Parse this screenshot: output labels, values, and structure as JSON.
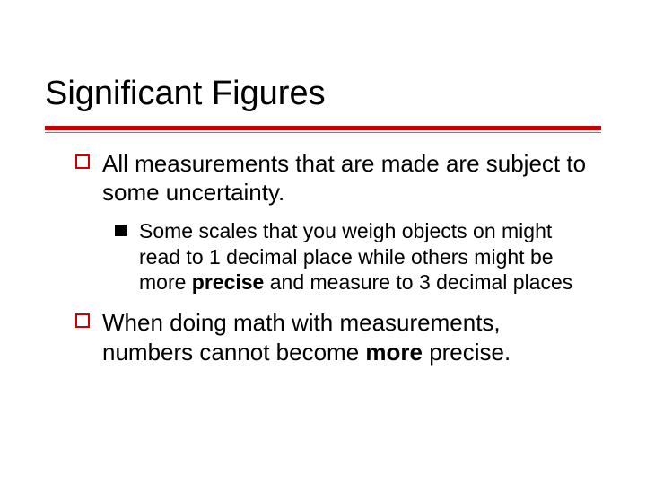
{
  "slide": {
    "title": "Significant Figures",
    "title_fontsize": 38,
    "title_color": "#000000",
    "rule_color": "#cc0000",
    "rule_thickness": 5,
    "thin_rule_color": "#808080",
    "background_color": "#ffffff",
    "font_family": "Verdana",
    "bullets": [
      {
        "level": 1,
        "marker": "hollow-square",
        "marker_color": "#cc0000",
        "fontsize": 26,
        "segments": [
          {
            "text": "All measurements that are made are subject to some uncertainty.",
            "bold": false
          }
        ]
      },
      {
        "level": 2,
        "marker": "solid-square",
        "marker_color": "#000000",
        "fontsize": 23,
        "segments": [
          {
            "text": "Some scales that you weigh objects on might read to 1 decimal place while others might be more ",
            "bold": false
          },
          {
            "text": "precise",
            "bold": true
          },
          {
            "text": " and measure to 3 decimal places",
            "bold": false
          }
        ]
      },
      {
        "level": 1,
        "marker": "hollow-square",
        "marker_color": "#cc0000",
        "fontsize": 26,
        "segments": [
          {
            "text": "When doing math with measurements, numbers cannot become ",
            "bold": false
          },
          {
            "text": "more",
            "bold": true
          },
          {
            "text": " precise.",
            "bold": false
          }
        ]
      }
    ]
  }
}
